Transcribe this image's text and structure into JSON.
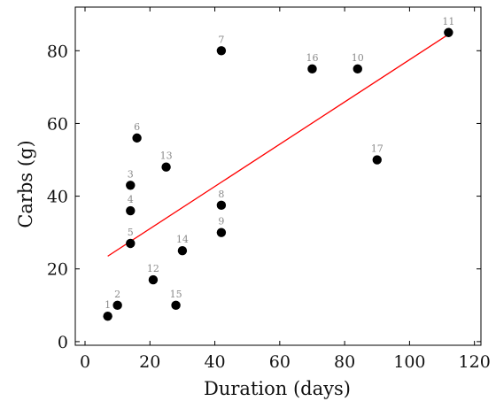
{
  "chart_data": {
    "type": "scatter",
    "title": "",
    "xlabel": "Duration (days)",
    "ylabel": "Carbs (g)",
    "xlim": [
      -3,
      122
    ],
    "ylim": [
      -1,
      92
    ],
    "x_ticks": [
      0,
      20,
      40,
      60,
      80,
      100,
      120
    ],
    "y_ticks": [
      0,
      20,
      40,
      60,
      80
    ],
    "grid": false,
    "legend": "none",
    "points": [
      {
        "label": "1",
        "x": 7,
        "y": 7
      },
      {
        "label": "2",
        "x": 10,
        "y": 10
      },
      {
        "label": "3",
        "x": 14,
        "y": 43
      },
      {
        "label": "4",
        "x": 14,
        "y": 36
      },
      {
        "label": "5",
        "x": 14,
        "y": 27
      },
      {
        "label": "6",
        "x": 16,
        "y": 56
      },
      {
        "label": "7",
        "x": 42,
        "y": 80
      },
      {
        "label": "8",
        "x": 42,
        "y": 37.5
      },
      {
        "label": "9",
        "x": 42,
        "y": 30
      },
      {
        "label": "10",
        "x": 84,
        "y": 75
      },
      {
        "label": "11",
        "x": 112,
        "y": 85
      },
      {
        "label": "12",
        "x": 21,
        "y": 17
      },
      {
        "label": "13",
        "x": 25,
        "y": 48
      },
      {
        "label": "14",
        "x": 30,
        "y": 25
      },
      {
        "label": "15",
        "x": 28,
        "y": 10
      },
      {
        "label": "16",
        "x": 70,
        "y": 75
      },
      {
        "label": "17",
        "x": 90,
        "y": 50
      }
    ],
    "trend_line": {
      "x": [
        7,
        112
      ],
      "y": [
        23.5,
        84.5
      ]
    },
    "colors": {
      "points": "#000000",
      "point_labels": "#8a8a8a",
      "trend_line": "#ff0000",
      "axes": "#000000"
    }
  }
}
